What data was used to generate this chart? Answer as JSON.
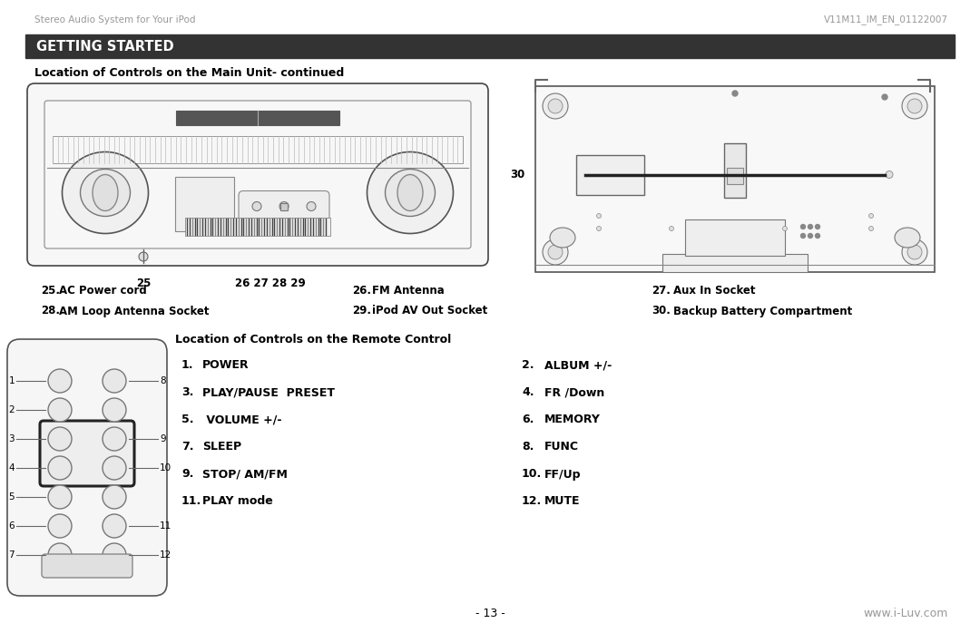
{
  "header_left": "Stereo Audio System for Your iPod",
  "header_right": "V11M11_IM_EN_01122007",
  "section_title": "GETTING STARTED",
  "section_bg": "#333333",
  "section_fg": "#ffffff",
  "subsection1": "Location of Controls on the Main Unit- continued",
  "subsection2": "Location of Controls on the Remote Control",
  "footer_center": "- 13 -",
  "footer_right": "www.i-Luv.com",
  "item_labels_left": [
    [
      "25.",
      "AC Power cord"
    ],
    [
      "28.",
      "AM Loop Antenna Socket"
    ]
  ],
  "item_labels_mid": [
    [
      "26.",
      "FM Antenna"
    ],
    [
      "29.",
      "iPod AV Out Socket"
    ]
  ],
  "item_labels_right": [
    [
      "27.",
      "Aux In Socket"
    ],
    [
      "30.",
      "Backup Battery Compartment"
    ]
  ],
  "remote_labels_left": [
    [
      "1.",
      "POWER"
    ],
    [
      "3.",
      "PLAY/PAUSE  PRESET"
    ],
    [
      "5.",
      " VOLUME +/-"
    ],
    [
      "7.",
      "SLEEP"
    ],
    [
      "9.",
      "STOP/ AM/FM"
    ],
    [
      "11.",
      "PLAY mode"
    ]
  ],
  "remote_labels_right": [
    [
      "2.",
      "ALBUM +/-"
    ],
    [
      "4.",
      "FR /Down"
    ],
    [
      "6.",
      "MEMORY"
    ],
    [
      "8.",
      "FUNC"
    ],
    [
      "10.",
      "FF/Up"
    ],
    [
      "12.",
      "MUTE"
    ]
  ],
  "remote_side_left": [
    "1",
    "2",
    "3",
    "4",
    "5",
    "6",
    "7"
  ],
  "remote_side_right": [
    "8",
    "9",
    "10",
    "11",
    "12"
  ],
  "bg_color": "#ffffff",
  "text_color": "#000000",
  "gray_color": "#999999",
  "dark_color": "#333333"
}
